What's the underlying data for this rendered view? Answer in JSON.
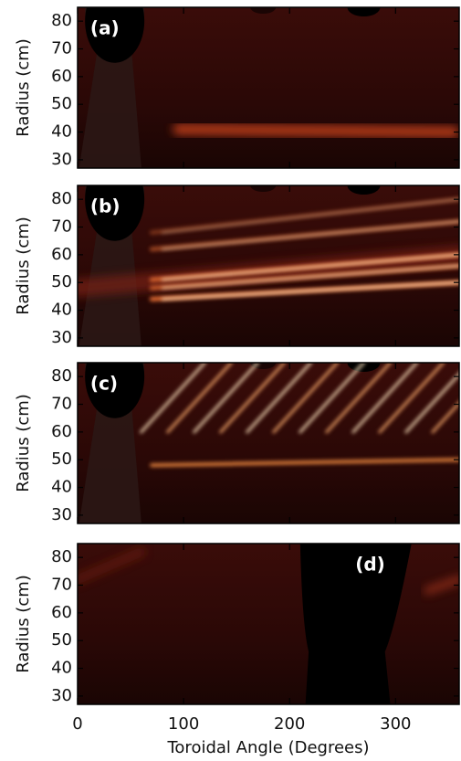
{
  "chart_data": [
    {
      "type": "image",
      "panel_label": "(a)",
      "ylabel": "Radius (cm)",
      "ylim": [
        27,
        85
      ],
      "yticks": [
        30,
        40,
        50,
        60,
        70,
        80
      ],
      "xlim": [
        0,
        360
      ],
      "xticks": [
        0,
        100,
        200,
        300
      ]
    },
    {
      "type": "image",
      "panel_label": "(b)",
      "ylabel": "Radius (cm)",
      "ylim": [
        27,
        85
      ],
      "yticks": [
        30,
        40,
        50,
        60,
        70,
        80
      ],
      "xlim": [
        0,
        360
      ],
      "xticks": [
        0,
        100,
        200,
        300
      ]
    },
    {
      "type": "image",
      "panel_label": "(c)",
      "ylabel": "Radius (cm)",
      "ylim": [
        27,
        85
      ],
      "yticks": [
        30,
        40,
        50,
        60,
        70,
        80
      ],
      "xlim": [
        0,
        360
      ],
      "xticks": [
        0,
        100,
        200,
        300
      ]
    },
    {
      "type": "image",
      "panel_label": "(d)",
      "ylabel": "Radius (cm)",
      "xlabel": "Toroidal Angle (Degrees)",
      "ylim": [
        27,
        85
      ],
      "yticks": [
        30,
        40,
        50,
        60,
        70,
        80
      ],
      "xlim": [
        0,
        360
      ],
      "xticks": [
        0,
        100,
        200,
        300
      ]
    }
  ]
}
